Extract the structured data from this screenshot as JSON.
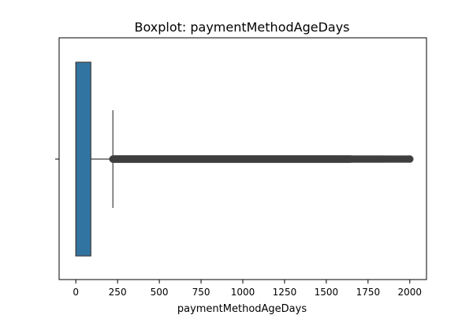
{
  "chart_data": {
    "type": "boxplot",
    "title": "Boxplot: paymentMethodAgeDays",
    "xlabel": "paymentMethodAgeDays",
    "ylabel": "",
    "xlim": [
      -100,
      2100
    ],
    "xticks": [
      0,
      250,
      500,
      750,
      1000,
      1250,
      1500,
      1750,
      2000
    ],
    "xtick_labels": [
      "0",
      "250",
      "500",
      "750",
      "1000",
      "1250",
      "1500",
      "1750",
      "2000"
    ],
    "box": {
      "whisker_low": 0,
      "q1": 0,
      "median": 1,
      "q3": 90,
      "whisker_high": 222
    },
    "outliers": {
      "min": 222,
      "max": 2000,
      "sparse_start": 1650
    },
    "orientation": "horizontal",
    "grid": false,
    "colors": {
      "box_fill": "#3274a1",
      "lines": "#3f3f3f",
      "outlier": "#3f3f3f"
    }
  }
}
